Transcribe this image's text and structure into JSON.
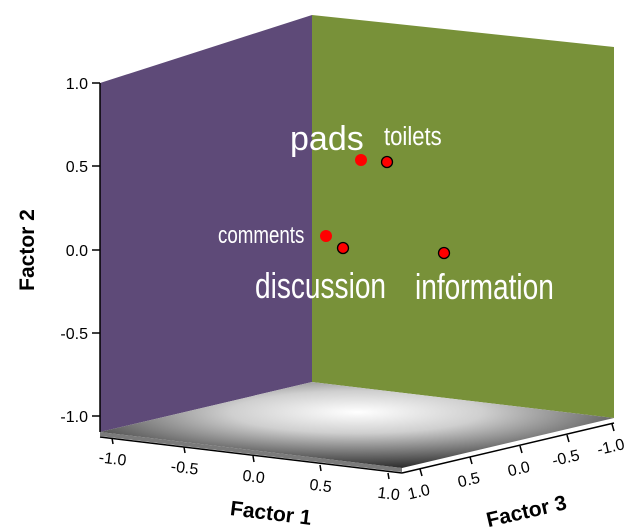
{
  "chart_data": {
    "type": "scatter3d",
    "axes": {
      "x": {
        "label": "Factor 1",
        "ticks": [
          "-1.0",
          "-0.5",
          "0.0",
          "0.5",
          "1.0"
        ]
      },
      "y": {
        "label": "Factor 2",
        "ticks": [
          "1.0",
          "0.5",
          "0.0",
          "-0.5",
          "-1.0"
        ]
      },
      "z": {
        "label": "Factor 3",
        "ticks": [
          "1.0",
          "0.5",
          "0.0",
          "-0.5",
          "-1.0"
        ]
      }
    },
    "points": [
      {
        "name": "pads",
        "factor1": 0.2,
        "factor2": 0.55,
        "factor3": 0.8,
        "style": "solid"
      },
      {
        "name": "toilets",
        "factor1": 0.45,
        "factor2": 0.53,
        "factor3": 0.9,
        "style": "outlined"
      },
      {
        "name": "comments",
        "factor1": -0.1,
        "factor2": 0.08,
        "factor3": 0.75,
        "style": "solid"
      },
      {
        "name": "discussion",
        "factor1": 0.15,
        "factor2": 0.02,
        "factor3": 0.85,
        "style": "outlined"
      },
      {
        "name": "information",
        "factor1": 0.95,
        "factor2": 0.0,
        "factor3": 0.55,
        "style": "outlined"
      }
    ],
    "colors": {
      "left_wall": "#5e4a78",
      "back_wall": "#789139",
      "point_fill": "#ff0000",
      "label_color": "#ffffff"
    }
  }
}
